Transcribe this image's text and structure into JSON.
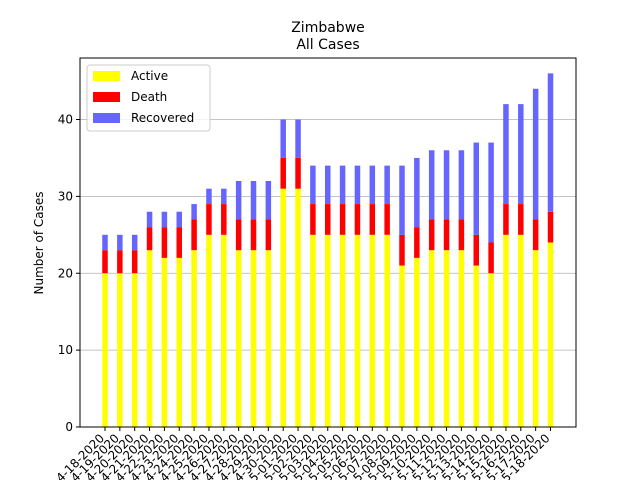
{
  "chart_data": {
    "type": "bar",
    "stacked": true,
    "title": "Zimbabwe",
    "subtitle": "All Cases",
    "xlabel": "",
    "ylabel": "Number of Cases",
    "ylim": [
      0,
      48
    ],
    "yticks": [
      0,
      10,
      20,
      30,
      40
    ],
    "grid": "y",
    "legend_position": "top-left",
    "categories": [
      "4-18-2020",
      "4-19-2020",
      "4-20-2020",
      "4-21-2020",
      "4-22-2020",
      "4-23-2020",
      "4-24-2020",
      "4-25-2020",
      "4-26-2020",
      "4-27-2020",
      "4-28-2020",
      "4-29-2020",
      "4-30-2020",
      "5-01-2020",
      "5-02-2020",
      "5-03-2020",
      "5-04-2020",
      "5-05-2020",
      "5-06-2020",
      "5-07-2020",
      "5-08-2020",
      "5-09-2020",
      "5-10-2020",
      "5-11-2020",
      "5-12-2020",
      "5-13-2020",
      "5-14-2020",
      "5-15-2020",
      "5-16-2020",
      "5-17-2020",
      "5-18-2020"
    ],
    "series": [
      {
        "name": "Active",
        "color": "#ffff00",
        "values": [
          20,
          20,
          20,
          23,
          22,
          22,
          23,
          25,
          25,
          23,
          23,
          23,
          31,
          31,
          25,
          25,
          25,
          25,
          25,
          25,
          21,
          22,
          23,
          23,
          23,
          21,
          20,
          25,
          25,
          23,
          24
        ]
      },
      {
        "name": "Death",
        "color": "#ff0000",
        "values": [
          3,
          3,
          3,
          3,
          4,
          4,
          4,
          4,
          4,
          4,
          4,
          4,
          4,
          4,
          4,
          4,
          4,
          4,
          4,
          4,
          4,
          4,
          4,
          4,
          4,
          4,
          4,
          4,
          4,
          4,
          4
        ]
      },
      {
        "name": "Recovered",
        "color": "#6666ff",
        "values": [
          2,
          2,
          2,
          2,
          2,
          2,
          2,
          2,
          2,
          5,
          5,
          5,
          5,
          5,
          5,
          5,
          5,
          5,
          5,
          5,
          9,
          9,
          9,
          9,
          9,
          12,
          13,
          13,
          13,
          17,
          18
        ]
      }
    ]
  }
}
